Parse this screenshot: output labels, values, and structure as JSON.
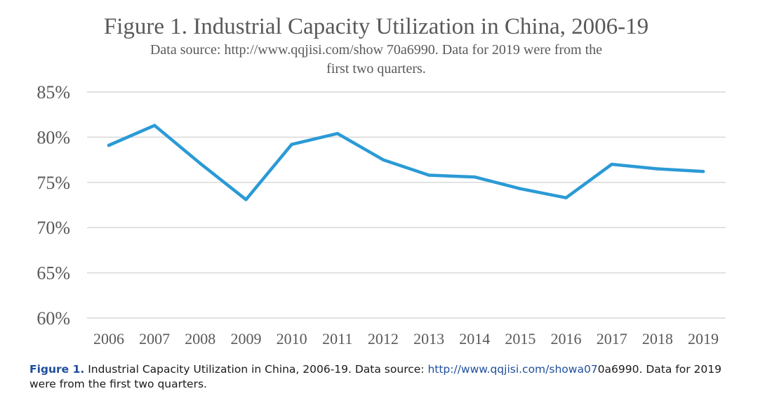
{
  "chart_data": {
    "type": "line",
    "title": "Figure 1. Industrial Capacity Utilization in China, 2006-19",
    "subtitle_lines": [
      "Data source: http://www.qqjisi.com/show 70a6990.  Data for 2019 were from the",
      "first two quarters."
    ],
    "xlabel": "",
    "ylabel": "",
    "categories": [
      "2006",
      "2007",
      "2008",
      "2009",
      "2010",
      "2011",
      "2012",
      "2013",
      "2014",
      "2015",
      "2016",
      "2017",
      "2018",
      "2019"
    ],
    "series": [
      {
        "values": [
          79.1,
          81.3,
          77.1,
          73.1,
          79.2,
          80.4,
          77.5,
          75.8,
          75.6,
          74.3,
          73.3,
          77.0,
          76.5,
          76.2
        ]
      }
    ],
    "yticks": [
      "60%",
      "65%",
      "70%",
      "75%",
      "80%",
      "85%"
    ],
    "ylim": [
      60,
      85
    ],
    "grid": true,
    "legend": "none",
    "colors": {
      "line": "#2b9ad6",
      "grid": "#d9d9d9",
      "text": "#595959"
    }
  },
  "caption": {
    "label": "Figure 1.",
    "text_before_link": " Industrial Capacity Utilization in China, 2006-19. Data source: ",
    "link": "http://www.qqjisi.com/showa07",
    "text_after_link": "0a6990. Data for 2019",
    "line2": "were from the first two quarters."
  }
}
